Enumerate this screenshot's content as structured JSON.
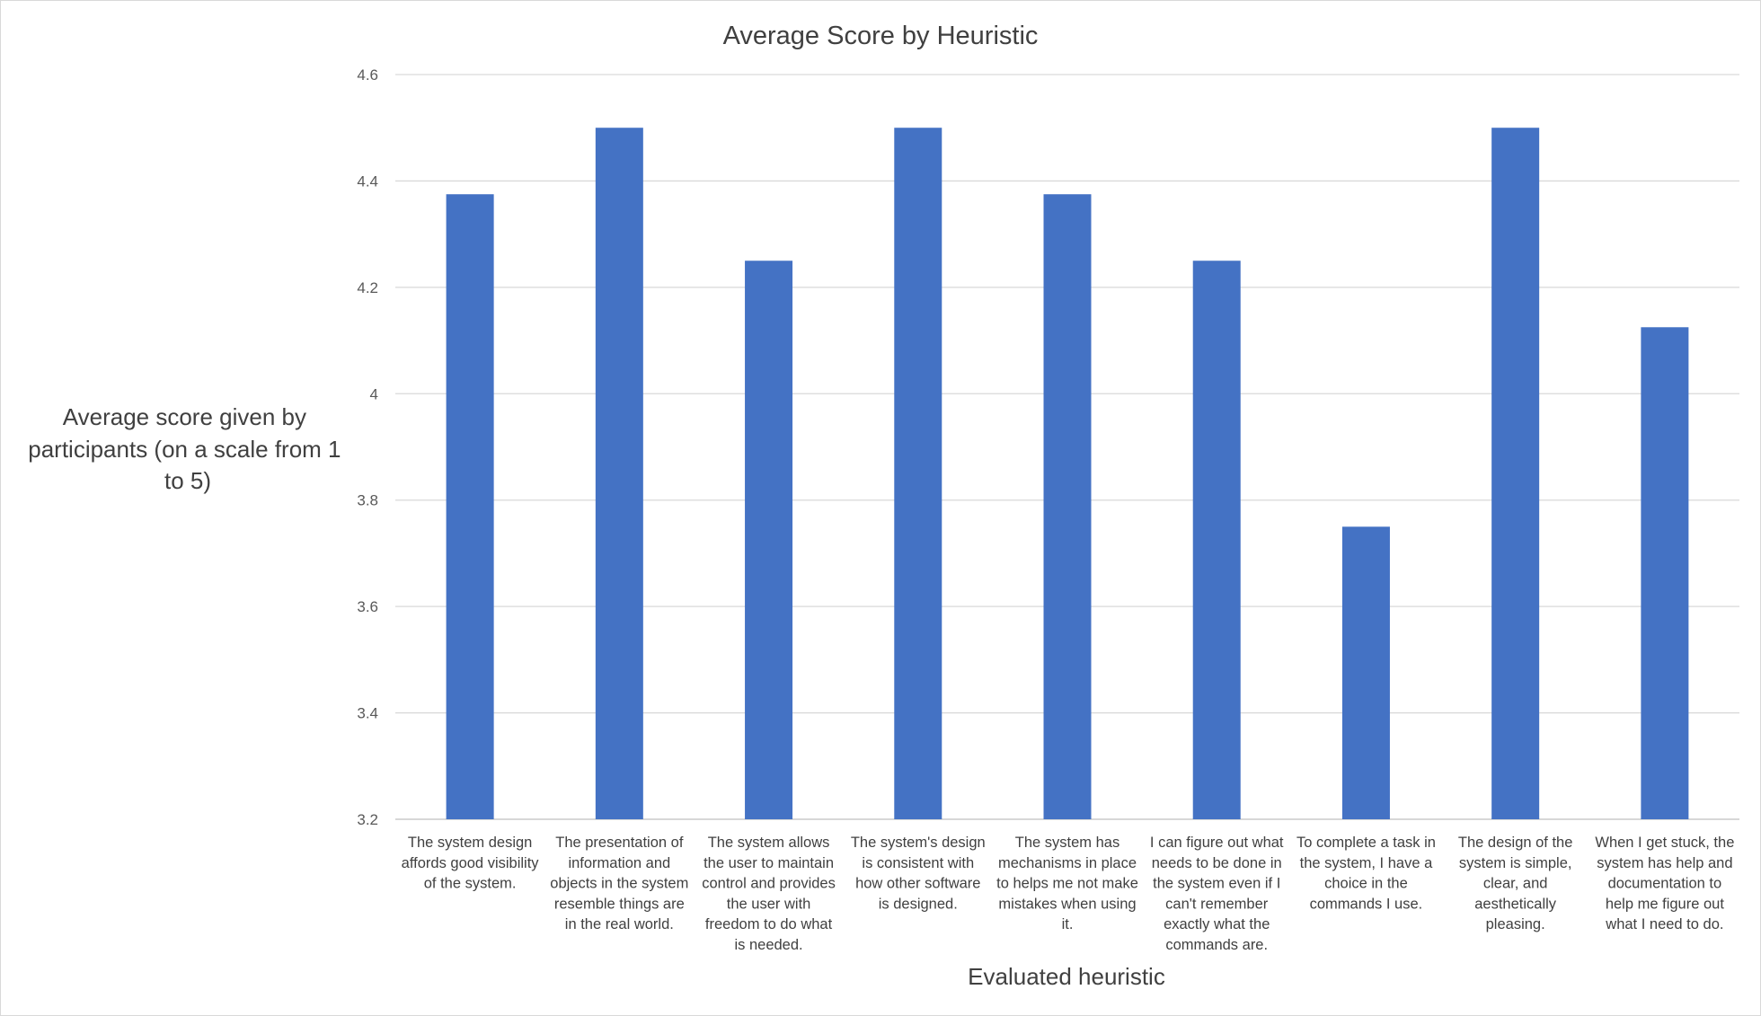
{
  "chart_data": {
    "type": "bar",
    "title": "Average Score by Heuristic",
    "xlabel": "Evaluated heuristic",
    "ylabel_lines": [
      "Average score given by",
      "participants (on a scale from 1",
      "to 5)"
    ],
    "ylim": [
      3.2,
      4.6
    ],
    "yticks": [
      "3.2",
      "3.4",
      "3.6",
      "3.8",
      "4",
      "4.2",
      "4.4",
      "4.6"
    ],
    "grid": true,
    "legend": "none",
    "bar_color": "#4472C4",
    "categories": [
      [
        "The system design",
        "affords good visibility",
        "of the system."
      ],
      [
        "The presentation of",
        "information and",
        "objects in the system",
        "resemble things are",
        "in the real world."
      ],
      [
        "The system allows",
        "the user to maintain",
        "control and provides",
        "the user with",
        "freedom to do what",
        "is needed."
      ],
      [
        "The system's design",
        "is consistent with",
        "how other software",
        "is designed."
      ],
      [
        "The system has",
        "mechanisms in place",
        "to helps me not make",
        "mistakes when using",
        "it."
      ],
      [
        "I can figure out what",
        "needs to be done in",
        "the system even if I",
        "can't remember",
        "exactly what the",
        "commands are."
      ],
      [
        "To complete a task in",
        "the system, I have a",
        "choice in the",
        "commands I use."
      ],
      [
        "The design of the",
        "system is simple,",
        "clear, and",
        "aesthetically",
        "pleasing."
      ],
      [
        "When I get stuck, the",
        "system has help and",
        "documentation to",
        "help me figure out",
        "what I need to do."
      ]
    ],
    "values": [
      4.375,
      4.5,
      4.25,
      4.5,
      4.375,
      4.25,
      3.75,
      4.5,
      4.125
    ]
  }
}
